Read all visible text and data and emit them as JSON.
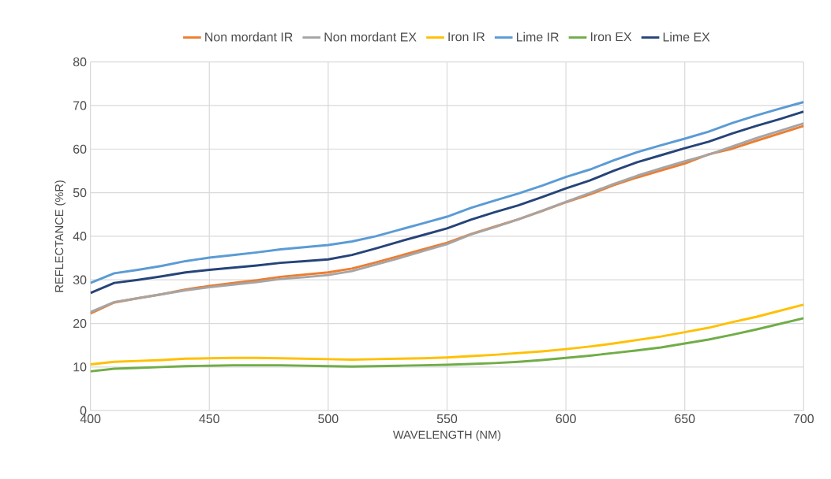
{
  "chart_data": {
    "type": "line",
    "xlabel": "WAVELENGTH (NM)",
    "ylabel": "REFLECTANCE (%R)",
    "x": [
      400,
      410,
      420,
      430,
      440,
      450,
      460,
      470,
      480,
      490,
      500,
      510,
      520,
      530,
      540,
      550,
      560,
      570,
      580,
      590,
      600,
      610,
      620,
      630,
      640,
      650,
      660,
      670,
      680,
      690,
      700
    ],
    "series": [
      {
        "name": "Non mordant IR",
        "color": "#ed7d31",
        "values": [
          22.3,
          24.8,
          25.8,
          26.7,
          27.8,
          28.6,
          29.3,
          29.9,
          30.7,
          31.2,
          31.7,
          32.6,
          34.0,
          35.5,
          37.0,
          38.5,
          40.5,
          42.2,
          43.9,
          45.8,
          47.8,
          49.6,
          51.7,
          53.5,
          55.1,
          56.7,
          58.8,
          60.1,
          61.9,
          63.6,
          65.3
        ]
      },
      {
        "name": "Non mordant EX",
        "color": "#a5a5a5",
        "values": [
          22.6,
          24.9,
          25.8,
          26.7,
          27.6,
          28.3,
          28.9,
          29.5,
          30.2,
          30.6,
          31.1,
          32.0,
          33.5,
          35.0,
          36.6,
          38.2,
          40.4,
          42.1,
          43.9,
          45.9,
          47.9,
          49.9,
          52.0,
          53.9,
          55.6,
          57.2,
          58.7,
          60.6,
          62.5,
          64.2,
          65.9
        ]
      },
      {
        "name": "Iron IR",
        "color": "#ffc000",
        "values": [
          10.6,
          11.2,
          11.4,
          11.6,
          11.9,
          12.0,
          12.1,
          12.1,
          12.0,
          11.9,
          11.8,
          11.7,
          11.8,
          11.9,
          12.0,
          12.2,
          12.5,
          12.8,
          13.2,
          13.6,
          14.1,
          14.7,
          15.4,
          16.2,
          17.0,
          18.0,
          19.0,
          20.3,
          21.5,
          22.9,
          24.3
        ]
      },
      {
        "name": "Lime IR",
        "color": "#5b9bd5",
        "values": [
          29.3,
          31.5,
          32.3,
          33.2,
          34.3,
          35.1,
          35.7,
          36.3,
          37.0,
          37.5,
          38.0,
          38.8,
          40.0,
          41.5,
          43.0,
          44.5,
          46.5,
          48.2,
          49.8,
          51.6,
          53.6,
          55.3,
          57.4,
          59.3,
          60.9,
          62.4,
          64.0,
          66.0,
          67.7,
          69.3,
          70.8
        ]
      },
      {
        "name": "Iron EX",
        "color": "#70ad47",
        "values": [
          9.0,
          9.6,
          9.8,
          10.0,
          10.2,
          10.3,
          10.4,
          10.4,
          10.4,
          10.3,
          10.2,
          10.1,
          10.2,
          10.3,
          10.4,
          10.5,
          10.7,
          10.9,
          11.2,
          11.6,
          12.1,
          12.6,
          13.2,
          13.8,
          14.5,
          15.4,
          16.3,
          17.4,
          18.6,
          19.9,
          21.2
        ]
      },
      {
        "name": "Lime EX",
        "color": "#264478",
        "values": [
          27.0,
          29.3,
          30.0,
          30.8,
          31.7,
          32.3,
          32.8,
          33.3,
          33.9,
          34.3,
          34.7,
          35.7,
          37.2,
          38.8,
          40.3,
          41.8,
          43.8,
          45.5,
          47.1,
          49.0,
          51.0,
          52.8,
          55.0,
          57.0,
          58.6,
          60.2,
          61.7,
          63.6,
          65.3,
          66.9,
          68.6
        ]
      }
    ],
    "xlim": [
      400,
      700
    ],
    "ylim": [
      0,
      80
    ],
    "xticks": [
      400,
      450,
      500,
      550,
      600,
      650,
      700
    ],
    "yticks": [
      0,
      10,
      20,
      30,
      40,
      50,
      60,
      70,
      80
    ],
    "grid": true,
    "legend": "top",
    "marker": "none",
    "line_style": "solid"
  }
}
